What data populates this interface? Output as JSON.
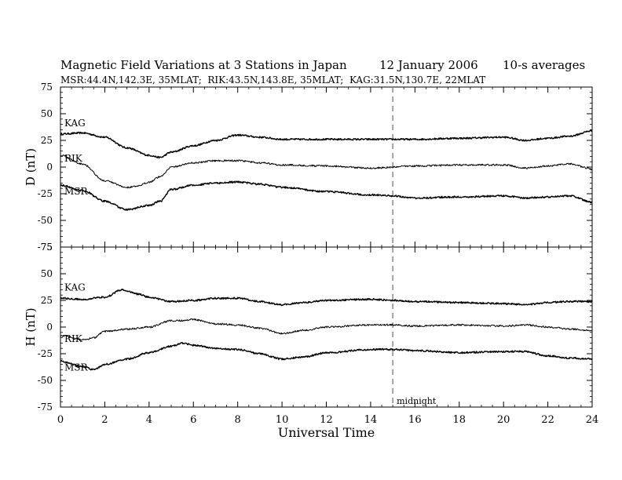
{
  "header": {
    "title": "Magnetic Field Variations at 3 Stations in Japan",
    "date": "12 January 2006",
    "averaging": "10-s averages",
    "stations_line": "MSR:44.4N,142.3E, 35MLAT;  RIK:43.5N,143.8E, 35MLAT;  KAG:31.5N,130.7E, 22MLAT"
  },
  "chart_data": [
    {
      "type": "line",
      "ylabel": "D (nT)",
      "ylim": [
        -75,
        75
      ],
      "yticks": [
        -75,
        -50,
        -25,
        0,
        25,
        50,
        75
      ],
      "xlim": [
        0,
        24
      ],
      "series": [
        {
          "name": "KAG",
          "x": [
            0,
            1,
            2,
            3,
            4,
            4.5,
            5,
            6,
            7,
            8,
            9,
            10,
            12,
            14,
            16,
            18,
            20,
            21,
            22,
            23,
            24
          ],
          "values": [
            31,
            32,
            28,
            18,
            11,
            9,
            14,
            20,
            25,
            30,
            28,
            26,
            26,
            26,
            26,
            27,
            28,
            25,
            27,
            29,
            34
          ]
        },
        {
          "name": "RIK",
          "x": [
            0,
            1,
            2,
            3,
            3.5,
            4,
            4.5,
            5,
            6,
            7,
            8,
            9,
            10,
            12,
            14,
            16,
            18,
            20,
            21,
            22,
            23,
            24
          ],
          "values": [
            11,
            3,
            -13,
            -19,
            -18,
            -14,
            -9,
            0,
            4,
            6,
            6,
            4,
            2,
            1,
            -1,
            1,
            2,
            2,
            -1,
            1,
            3,
            -2
          ]
        },
        {
          "name": "MSR",
          "x": [
            0,
            1,
            2,
            3,
            4,
            4.5,
            5,
            6,
            7,
            8,
            9,
            10,
            12,
            14,
            15,
            16,
            18,
            20,
            21,
            22,
            23,
            24
          ],
          "values": [
            -17,
            -22,
            -32,
            -40,
            -36,
            -32,
            -21,
            -17,
            -15,
            -14,
            -16,
            -19,
            -23,
            -26,
            -27,
            -29,
            -28,
            -27,
            -29,
            -28,
            -27,
            -33
          ]
        }
      ]
    },
    {
      "type": "line",
      "ylabel": "H (nT)",
      "ylim": [
        -75,
        75
      ],
      "yticks": [
        -75,
        -50,
        -25,
        0,
        25,
        50,
        75
      ],
      "xlim": [
        0,
        24
      ],
      "xlabel": "Universal Time",
      "xticks": [
        0,
        2,
        4,
        6,
        8,
        10,
        12,
        14,
        16,
        18,
        20,
        22,
        24
      ],
      "series": [
        {
          "name": "KAG",
          "x": [
            0,
            1,
            2,
            2.8,
            3.5,
            4,
            5,
            6,
            7,
            8,
            9,
            10,
            11,
            12,
            14,
            15,
            16,
            18,
            20,
            21,
            22,
            23,
            24
          ],
          "values": [
            27,
            26,
            28,
            35,
            31,
            28,
            24,
            25,
            27,
            27,
            24,
            21,
            23,
            25,
            26,
            25,
            24,
            23,
            22,
            21,
            23,
            24,
            24
          ]
        },
        {
          "name": "RIK",
          "x": [
            0,
            1,
            1.5,
            2,
            3,
            4,
            5,
            5.5,
            6,
            7,
            8,
            9,
            10,
            11,
            12,
            14,
            15,
            16,
            18,
            20,
            21,
            22,
            23,
            24
          ],
          "values": [
            -8,
            -12,
            -10,
            -4,
            -2,
            0,
            6,
            6,
            7,
            3,
            2,
            -1,
            -6,
            -3,
            0,
            2,
            2,
            1,
            2,
            1,
            2,
            0,
            -2,
            -3
          ]
        },
        {
          "name": "MSR",
          "x": [
            0,
            1,
            1.5,
            2,
            3,
            4,
            5,
            5.5,
            6,
            7,
            8,
            9,
            10,
            11,
            12,
            14,
            15,
            16,
            18,
            20,
            21,
            22,
            23,
            24
          ],
          "values": [
            -32,
            -37,
            -40,
            -35,
            -30,
            -24,
            -18,
            -15,
            -17,
            -20,
            -21,
            -25,
            -30,
            -28,
            -24,
            -21,
            -21,
            -22,
            -24,
            -23,
            -23,
            -27,
            -29,
            -30
          ]
        }
      ]
    }
  ],
  "annotations": {
    "midnight_label": "midnight",
    "midnight_ut": 15
  }
}
